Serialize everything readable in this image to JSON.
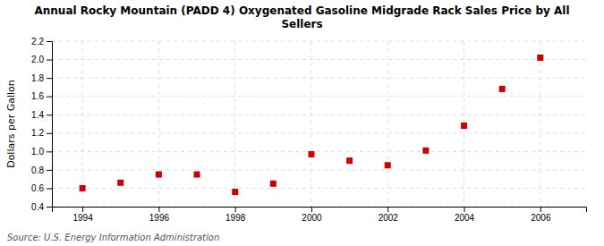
{
  "chart_data": {
    "type": "scatter",
    "title": "Annual Rocky Mountain (PADD 4) Oxygenated Gasoline Midgrade Rack Sales Price by All\nSellers",
    "ylabel": "Dollars per Gallon",
    "annotations": [
      "Source: U.S. Energy Information Administration"
    ],
    "x": [
      1994,
      1995,
      1996,
      1997,
      1998,
      1999,
      2000,
      2001,
      2002,
      2003,
      2004,
      2005,
      2006
    ],
    "values": [
      0.6,
      0.66,
      0.75,
      0.75,
      0.56,
      0.65,
      0.97,
      0.9,
      0.85,
      1.01,
      1.28,
      1.68,
      2.02
    ],
    "color": "#cc0000",
    "marker": "square",
    "xlim": [
      1993.2,
      2007.2
    ],
    "xticks": [
      1994,
      1996,
      1998,
      2000,
      2002,
      2004,
      2006
    ],
    "ylim": [
      0.4,
      2.2
    ],
    "yticks": [
      0.4,
      0.6,
      0.8,
      {
        "value": 1.0,
        "label": "1.0"
      },
      1.2,
      1.4,
      1.6,
      1.8,
      {
        "value": 2.0,
        "label": "2.0"
      },
      2.2
    ],
    "grid": true
  }
}
